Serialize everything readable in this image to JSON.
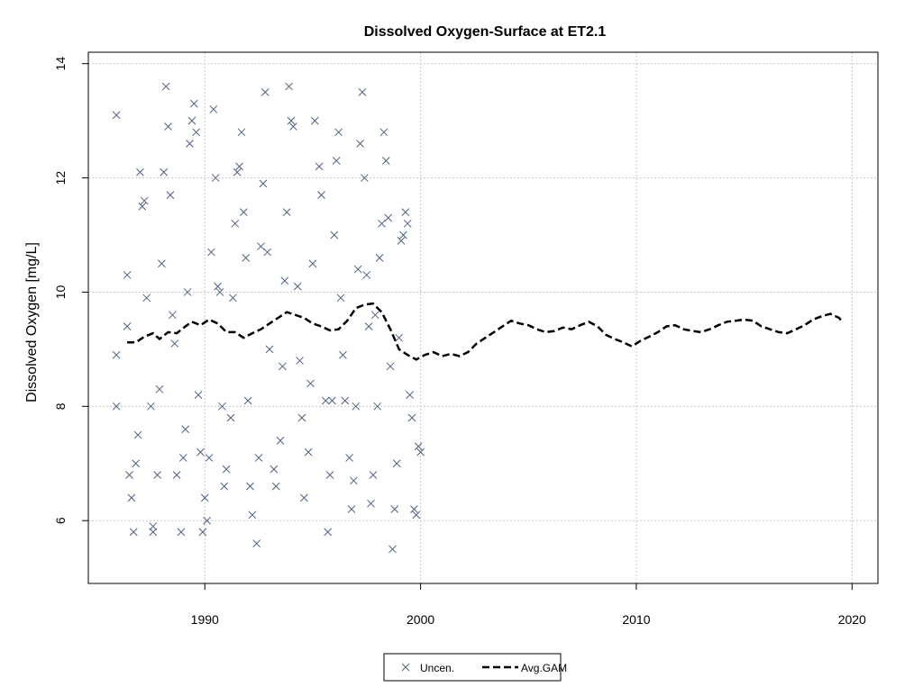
{
  "chart_data": {
    "type": "scatter",
    "title": "Dissolved Oxygen-Surface at ET2.1",
    "xlabel": "",
    "ylabel": "Dissolved Oxygen [mg/L]",
    "xlim": [
      1984.6,
      2021.2
    ],
    "ylim": [
      4.9,
      14.2
    ],
    "x_ticks": [
      1990,
      2000,
      2010,
      2020
    ],
    "y_ticks": [
      6,
      8,
      10,
      12,
      14
    ],
    "grid": true,
    "legend_position": "bottom-center",
    "colors": {
      "points": "#4f6282",
      "gam": "#000000",
      "grid": "#c8c8c8"
    },
    "series": [
      {
        "name": "Uncen.",
        "kind": "scatter",
        "marker": "x",
        "points": [
          [
            1985.9,
            13.1
          ],
          [
            1985.9,
            8.9
          ],
          [
            1985.9,
            8.0
          ],
          [
            1986.4,
            10.3
          ],
          [
            1986.4,
            9.4
          ],
          [
            1986.5,
            6.8
          ],
          [
            1986.6,
            6.4
          ],
          [
            1986.7,
            5.8
          ],
          [
            1986.8,
            7.0
          ],
          [
            1986.9,
            7.5
          ],
          [
            1987.0,
            12.1
          ],
          [
            1987.1,
            11.5
          ],
          [
            1987.2,
            11.6
          ],
          [
            1987.3,
            9.9
          ],
          [
            1987.5,
            8.0
          ],
          [
            1987.6,
            5.8
          ],
          [
            1987.6,
            5.9
          ],
          [
            1987.8,
            6.8
          ],
          [
            1987.9,
            8.3
          ],
          [
            1988.0,
            10.5
          ],
          [
            1988.1,
            12.1
          ],
          [
            1988.2,
            13.6
          ],
          [
            1988.3,
            12.9
          ],
          [
            1988.4,
            11.7
          ],
          [
            1988.5,
            9.6
          ],
          [
            1988.6,
            9.1
          ],
          [
            1988.7,
            6.8
          ],
          [
            1988.9,
            5.8
          ],
          [
            1989.0,
            7.1
          ],
          [
            1989.1,
            7.6
          ],
          [
            1989.2,
            10.0
          ],
          [
            1989.3,
            12.6
          ],
          [
            1989.4,
            13.0
          ],
          [
            1989.5,
            13.3
          ],
          [
            1989.6,
            12.8
          ],
          [
            1989.7,
            8.2
          ],
          [
            1989.8,
            7.2
          ],
          [
            1989.9,
            5.8
          ],
          [
            1990.0,
            6.4
          ],
          [
            1990.1,
            6.0
          ],
          [
            1990.2,
            7.1
          ],
          [
            1990.3,
            10.7
          ],
          [
            1990.4,
            13.2
          ],
          [
            1990.5,
            12.0
          ],
          [
            1990.6,
            10.1
          ],
          [
            1990.7,
            10.0
          ],
          [
            1990.8,
            8.0
          ],
          [
            1990.9,
            6.6
          ],
          [
            1991.0,
            6.9
          ],
          [
            1991.2,
            7.8
          ],
          [
            1991.3,
            9.9
          ],
          [
            1991.4,
            11.2
          ],
          [
            1991.5,
            12.1
          ],
          [
            1991.6,
            12.2
          ],
          [
            1991.7,
            12.8
          ],
          [
            1991.8,
            11.4
          ],
          [
            1991.9,
            10.6
          ],
          [
            1992.0,
            8.1
          ],
          [
            1992.1,
            6.6
          ],
          [
            1992.2,
            6.1
          ],
          [
            1992.4,
            5.6
          ],
          [
            1992.5,
            7.1
          ],
          [
            1992.6,
            10.8
          ],
          [
            1992.7,
            11.9
          ],
          [
            1992.8,
            13.5
          ],
          [
            1992.9,
            10.7
          ],
          [
            1993.0,
            9.0
          ],
          [
            1993.2,
            6.9
          ],
          [
            1993.3,
            6.6
          ],
          [
            1993.5,
            7.4
          ],
          [
            1993.6,
            8.7
          ],
          [
            1993.7,
            10.2
          ],
          [
            1993.8,
            11.4
          ],
          [
            1993.9,
            13.6
          ],
          [
            1994.0,
            13.0
          ],
          [
            1994.1,
            12.9
          ],
          [
            1994.3,
            10.1
          ],
          [
            1994.4,
            8.8
          ],
          [
            1994.5,
            7.8
          ],
          [
            1994.6,
            6.4
          ],
          [
            1994.8,
            7.2
          ],
          [
            1994.9,
            8.4
          ],
          [
            1995.0,
            10.5
          ],
          [
            1995.1,
            13.0
          ],
          [
            1995.3,
            12.2
          ],
          [
            1995.4,
            11.7
          ],
          [
            1995.6,
            8.1
          ],
          [
            1995.7,
            5.8
          ],
          [
            1995.8,
            6.8
          ],
          [
            1995.9,
            8.1
          ],
          [
            1996.0,
            11.0
          ],
          [
            1996.1,
            12.3
          ],
          [
            1996.2,
            12.8
          ],
          [
            1996.3,
            9.9
          ],
          [
            1996.4,
            8.9
          ],
          [
            1996.5,
            8.1
          ],
          [
            1996.7,
            7.1
          ],
          [
            1996.8,
            6.2
          ],
          [
            1996.9,
            6.7
          ],
          [
            1997.0,
            8.0
          ],
          [
            1997.1,
            10.4
          ],
          [
            1997.2,
            12.6
          ],
          [
            1997.3,
            13.5
          ],
          [
            1997.4,
            12.0
          ],
          [
            1997.5,
            10.3
          ],
          [
            1997.6,
            9.4
          ],
          [
            1997.7,
            6.3
          ],
          [
            1997.8,
            6.8
          ],
          [
            1997.9,
            9.6
          ],
          [
            1998.0,
            8.0
          ],
          [
            1998.1,
            10.6
          ],
          [
            1998.2,
            11.2
          ],
          [
            1998.3,
            12.8
          ],
          [
            1998.4,
            12.3
          ],
          [
            1998.5,
            11.3
          ],
          [
            1998.6,
            8.7
          ],
          [
            1998.7,
            5.5
          ],
          [
            1998.8,
            6.2
          ],
          [
            1998.9,
            7.0
          ],
          [
            1999.0,
            9.2
          ],
          [
            1999.1,
            10.9
          ],
          [
            1999.2,
            11.0
          ],
          [
            1999.3,
            11.4
          ],
          [
            1999.4,
            11.2
          ],
          [
            1999.5,
            8.2
          ],
          [
            1999.6,
            7.8
          ],
          [
            1999.7,
            6.2
          ],
          [
            1999.8,
            6.1
          ],
          [
            1999.9,
            7.3
          ],
          [
            2000.0,
            7.2
          ]
        ]
      },
      {
        "name": "Avg.GAM",
        "kind": "line",
        "style": "dashed",
        "points": [
          [
            1986.4,
            9.12
          ],
          [
            1986.8,
            9.12
          ],
          [
            1987.2,
            9.22
          ],
          [
            1987.6,
            9.28
          ],
          [
            1987.9,
            9.18
          ],
          [
            1988.3,
            9.3
          ],
          [
            1988.7,
            9.28
          ],
          [
            1989.1,
            9.4
          ],
          [
            1989.4,
            9.48
          ],
          [
            1989.8,
            9.42
          ],
          [
            1990.2,
            9.52
          ],
          [
            1990.6,
            9.45
          ],
          [
            1991.0,
            9.3
          ],
          [
            1991.4,
            9.3
          ],
          [
            1991.8,
            9.2
          ],
          [
            1992.2,
            9.28
          ],
          [
            1992.6,
            9.35
          ],
          [
            1993.0,
            9.45
          ],
          [
            1993.4,
            9.55
          ],
          [
            1993.8,
            9.65
          ],
          [
            1994.2,
            9.6
          ],
          [
            1994.6,
            9.55
          ],
          [
            1995.0,
            9.45
          ],
          [
            1995.4,
            9.4
          ],
          [
            1995.8,
            9.33
          ],
          [
            1996.2,
            9.35
          ],
          [
            1996.6,
            9.5
          ],
          [
            1997.0,
            9.72
          ],
          [
            1997.4,
            9.78
          ],
          [
            1997.8,
            9.8
          ],
          [
            1998.2,
            9.65
          ],
          [
            1998.6,
            9.35
          ],
          [
            1999.0,
            9.0
          ],
          [
            1999.4,
            8.9
          ],
          [
            1999.8,
            8.82
          ],
          [
            2000.2,
            8.9
          ],
          [
            2000.6,
            8.95
          ],
          [
            2001.0,
            8.88
          ],
          [
            2001.4,
            8.92
          ],
          [
            2001.8,
            8.88
          ],
          [
            2002.2,
            8.95
          ],
          [
            2002.6,
            9.1
          ],
          [
            2003.0,
            9.2
          ],
          [
            2003.4,
            9.3
          ],
          [
            2003.8,
            9.4
          ],
          [
            2004.2,
            9.5
          ],
          [
            2004.6,
            9.45
          ],
          [
            2005.0,
            9.42
          ],
          [
            2005.4,
            9.35
          ],
          [
            2005.8,
            9.3
          ],
          [
            2006.2,
            9.32
          ],
          [
            2006.6,
            9.38
          ],
          [
            2007.0,
            9.35
          ],
          [
            2007.4,
            9.42
          ],
          [
            2007.8,
            9.48
          ],
          [
            2008.2,
            9.4
          ],
          [
            2008.6,
            9.25
          ],
          [
            2009.0,
            9.18
          ],
          [
            2009.4,
            9.12
          ],
          [
            2009.8,
            9.05
          ],
          [
            2010.2,
            9.15
          ],
          [
            2010.6,
            9.22
          ],
          [
            2011.0,
            9.3
          ],
          [
            2011.4,
            9.4
          ],
          [
            2011.8,
            9.42
          ],
          [
            2012.2,
            9.35
          ],
          [
            2012.6,
            9.32
          ],
          [
            2013.0,
            9.3
          ],
          [
            2013.4,
            9.35
          ],
          [
            2013.8,
            9.42
          ],
          [
            2014.2,
            9.48
          ],
          [
            2014.6,
            9.5
          ],
          [
            2015.0,
            9.52
          ],
          [
            2015.4,
            9.5
          ],
          [
            2015.8,
            9.4
          ],
          [
            2016.2,
            9.35
          ],
          [
            2016.6,
            9.3
          ],
          [
            2017.0,
            9.28
          ],
          [
            2017.4,
            9.35
          ],
          [
            2017.8,
            9.42
          ],
          [
            2018.2,
            9.52
          ],
          [
            2018.6,
            9.58
          ],
          [
            2019.0,
            9.62
          ],
          [
            2019.4,
            9.55
          ],
          [
            2019.5,
            9.5
          ]
        ]
      }
    ]
  }
}
